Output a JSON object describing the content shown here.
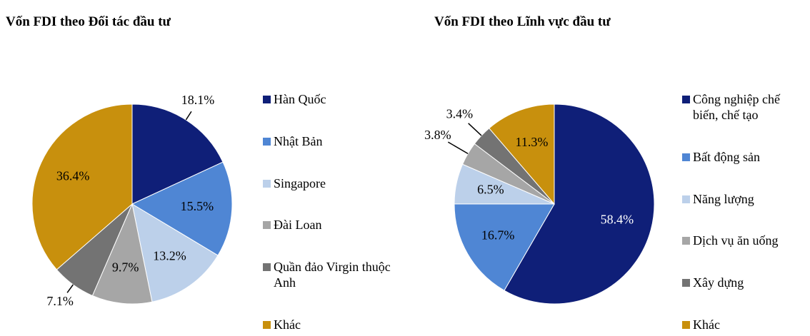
{
  "chart_data": [
    {
      "type": "pie",
      "title": "Vốn FDI theo Đối tác đầu tư",
      "categories": [
        "Hàn Quốc",
        "Nhật Bản",
        "Singapore",
        "Đài Loan",
        "Quần đảo Virgin thuộc Anh",
        "Khác"
      ],
      "values": [
        18.1,
        15.5,
        13.2,
        9.7,
        7.1,
        36.4
      ],
      "value_labels": [
        "18.1%",
        "15.5%",
        "13.2%",
        "9.7%",
        "7.1%",
        "36.4%"
      ],
      "colors": [
        "#0f1f78",
        "#4f86d4",
        "#bcd0ea",
        "#a6a6a6",
        "#737373",
        "#c8900d"
      ]
    },
    {
      "type": "pie",
      "title": "Vốn FDI theo Lĩnh vực đầu tư",
      "categories": [
        "Công nghiệp chế biến, chế tạo",
        "Bất động sản",
        "Năng lượng",
        "Dịch vụ ăn uống",
        "Xây dựng",
        "Khác"
      ],
      "values": [
        58.4,
        16.7,
        6.5,
        3.8,
        3.4,
        11.3
      ],
      "value_labels": [
        "58.4%",
        "16.7%",
        "6.5%",
        "3.8%",
        "3.4%",
        "11.3%"
      ],
      "colors": [
        "#0f1f78",
        "#4f86d4",
        "#bcd0ea",
        "#a6a6a6",
        "#737373",
        "#c8900d"
      ]
    }
  ]
}
